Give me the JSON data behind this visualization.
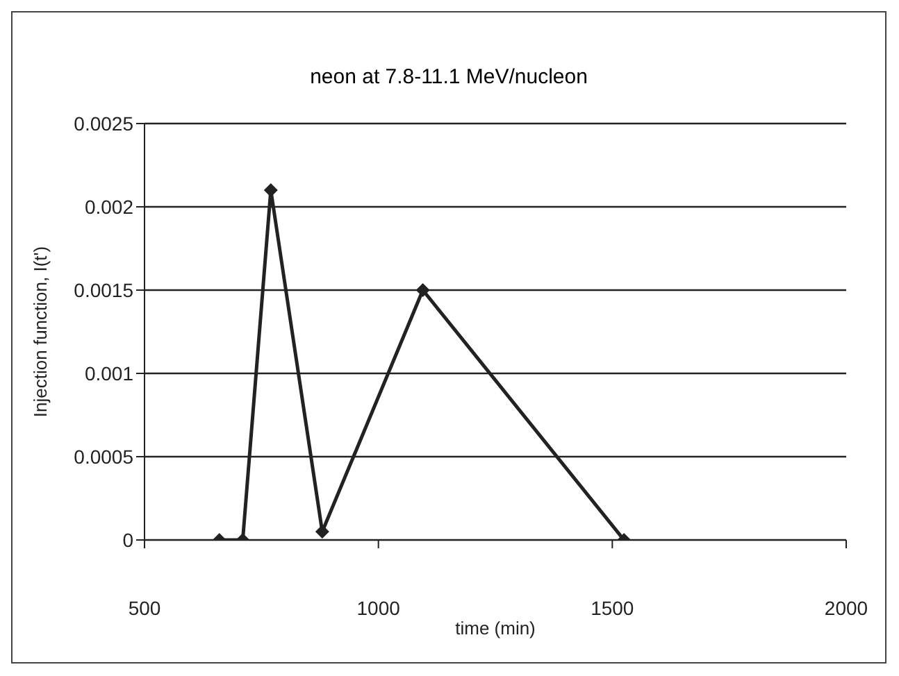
{
  "chart_data": {
    "type": "line",
    "title": "neon at 7.8-11.1 MeV/nucleon",
    "xlabel": "time (min)",
    "ylabel": "Injection function, I(t')",
    "x": [
      660,
      710,
      770,
      880,
      1095,
      1525
    ],
    "series": [
      {
        "color": "#222222",
        "values": [
          0,
          0,
          0.0021,
          5e-05,
          0.0015,
          0
        ]
      }
    ],
    "xlim": [
      500,
      2000
    ],
    "xticks": [
      500,
      1000,
      1500,
      2000
    ],
    "ylim": [
      0,
      0.0025
    ],
    "yticks": [
      0,
      0.0005,
      0.001,
      0.0015,
      0.002,
      0.0025
    ],
    "grid": "y",
    "marker": "diamond",
    "line_style": "solid"
  }
}
